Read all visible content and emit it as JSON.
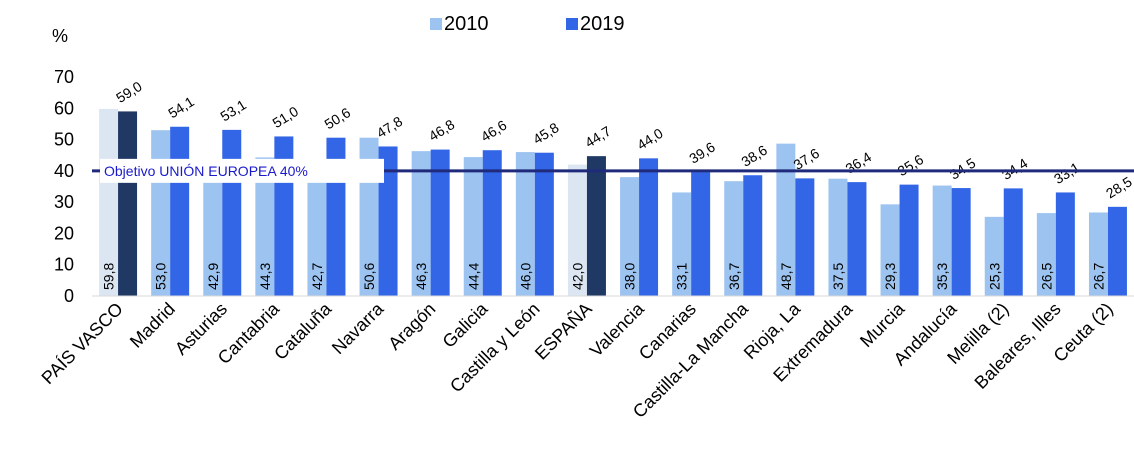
{
  "chart_data": {
    "type": "bar",
    "y_unit": "%",
    "categories": [
      "PAÍS VASCO",
      "Madrid",
      "Asturias",
      "Cantabria",
      "Cataluña",
      "Navarra",
      "Aragón",
      "Galicia",
      "Castilla y León",
      "ESPAÑA",
      "Valencia",
      "Canarias",
      "Castilla-La Mancha",
      "Rioja, La",
      "Extremadura",
      "Murcia",
      "Andalucía",
      "Melilla (2)",
      "Baleares, Illes",
      "Ceuta (2)"
    ],
    "series": [
      {
        "name": "2010",
        "color": "#9dc3f0",
        "point_colors": [
          "#dce6f2",
          null,
          null,
          null,
          null,
          null,
          null,
          null,
          null,
          "#dce6f2",
          null,
          null,
          null,
          null,
          null,
          null,
          null,
          null,
          null,
          null
        ],
        "values": [
          59.8,
          53.0,
          42.9,
          44.3,
          42.7,
          50.6,
          46.3,
          44.4,
          46.0,
          42.0,
          38.0,
          33.1,
          36.7,
          48.7,
          37.5,
          29.3,
          35.3,
          25.3,
          26.5,
          26.7
        ],
        "value_labels": [
          "59,8",
          "53,0",
          "42,9",
          "44,3",
          "42,7",
          "50,6",
          "46,3",
          "44,4",
          "46,0",
          "42,0",
          "38,0",
          "33,1",
          "36,7",
          "48,7",
          "37,5",
          "29,3",
          "35,3",
          "25,3",
          "26,5",
          "26,7"
        ]
      },
      {
        "name": "2019",
        "color": "#3366e6",
        "point_colors": [
          "#1f3864",
          null,
          null,
          null,
          null,
          null,
          null,
          null,
          null,
          "#1f3864",
          null,
          null,
          null,
          null,
          null,
          null,
          null,
          null,
          null,
          null
        ],
        "values": [
          59.0,
          54.1,
          53.1,
          51.0,
          50.6,
          47.8,
          46.8,
          46.6,
          45.8,
          44.7,
          44.0,
          39.6,
          38.6,
          37.6,
          36.4,
          35.6,
          34.5,
          34.4,
          33.1,
          28.5
        ],
        "value_labels": [
          "59,0",
          "54,1",
          "53,1",
          "51,0",
          "50,6",
          "47,8",
          "46,8",
          "46,6",
          "45,8",
          "44,7",
          "44,0",
          "39,6",
          "38,6",
          "37,6",
          "36,4",
          "35,6",
          "34,5",
          "34,4",
          "33,1",
          "28,5"
        ]
      }
    ],
    "ylim": [
      0,
      70
    ],
    "yticks": [
      0,
      10,
      20,
      30,
      40,
      50,
      60,
      70
    ],
    "reference_line": {
      "value": 40,
      "label": "Objetivo UNIÓN  EUROPEA  40%",
      "color": "#1f2a7a"
    },
    "legend": "top"
  }
}
